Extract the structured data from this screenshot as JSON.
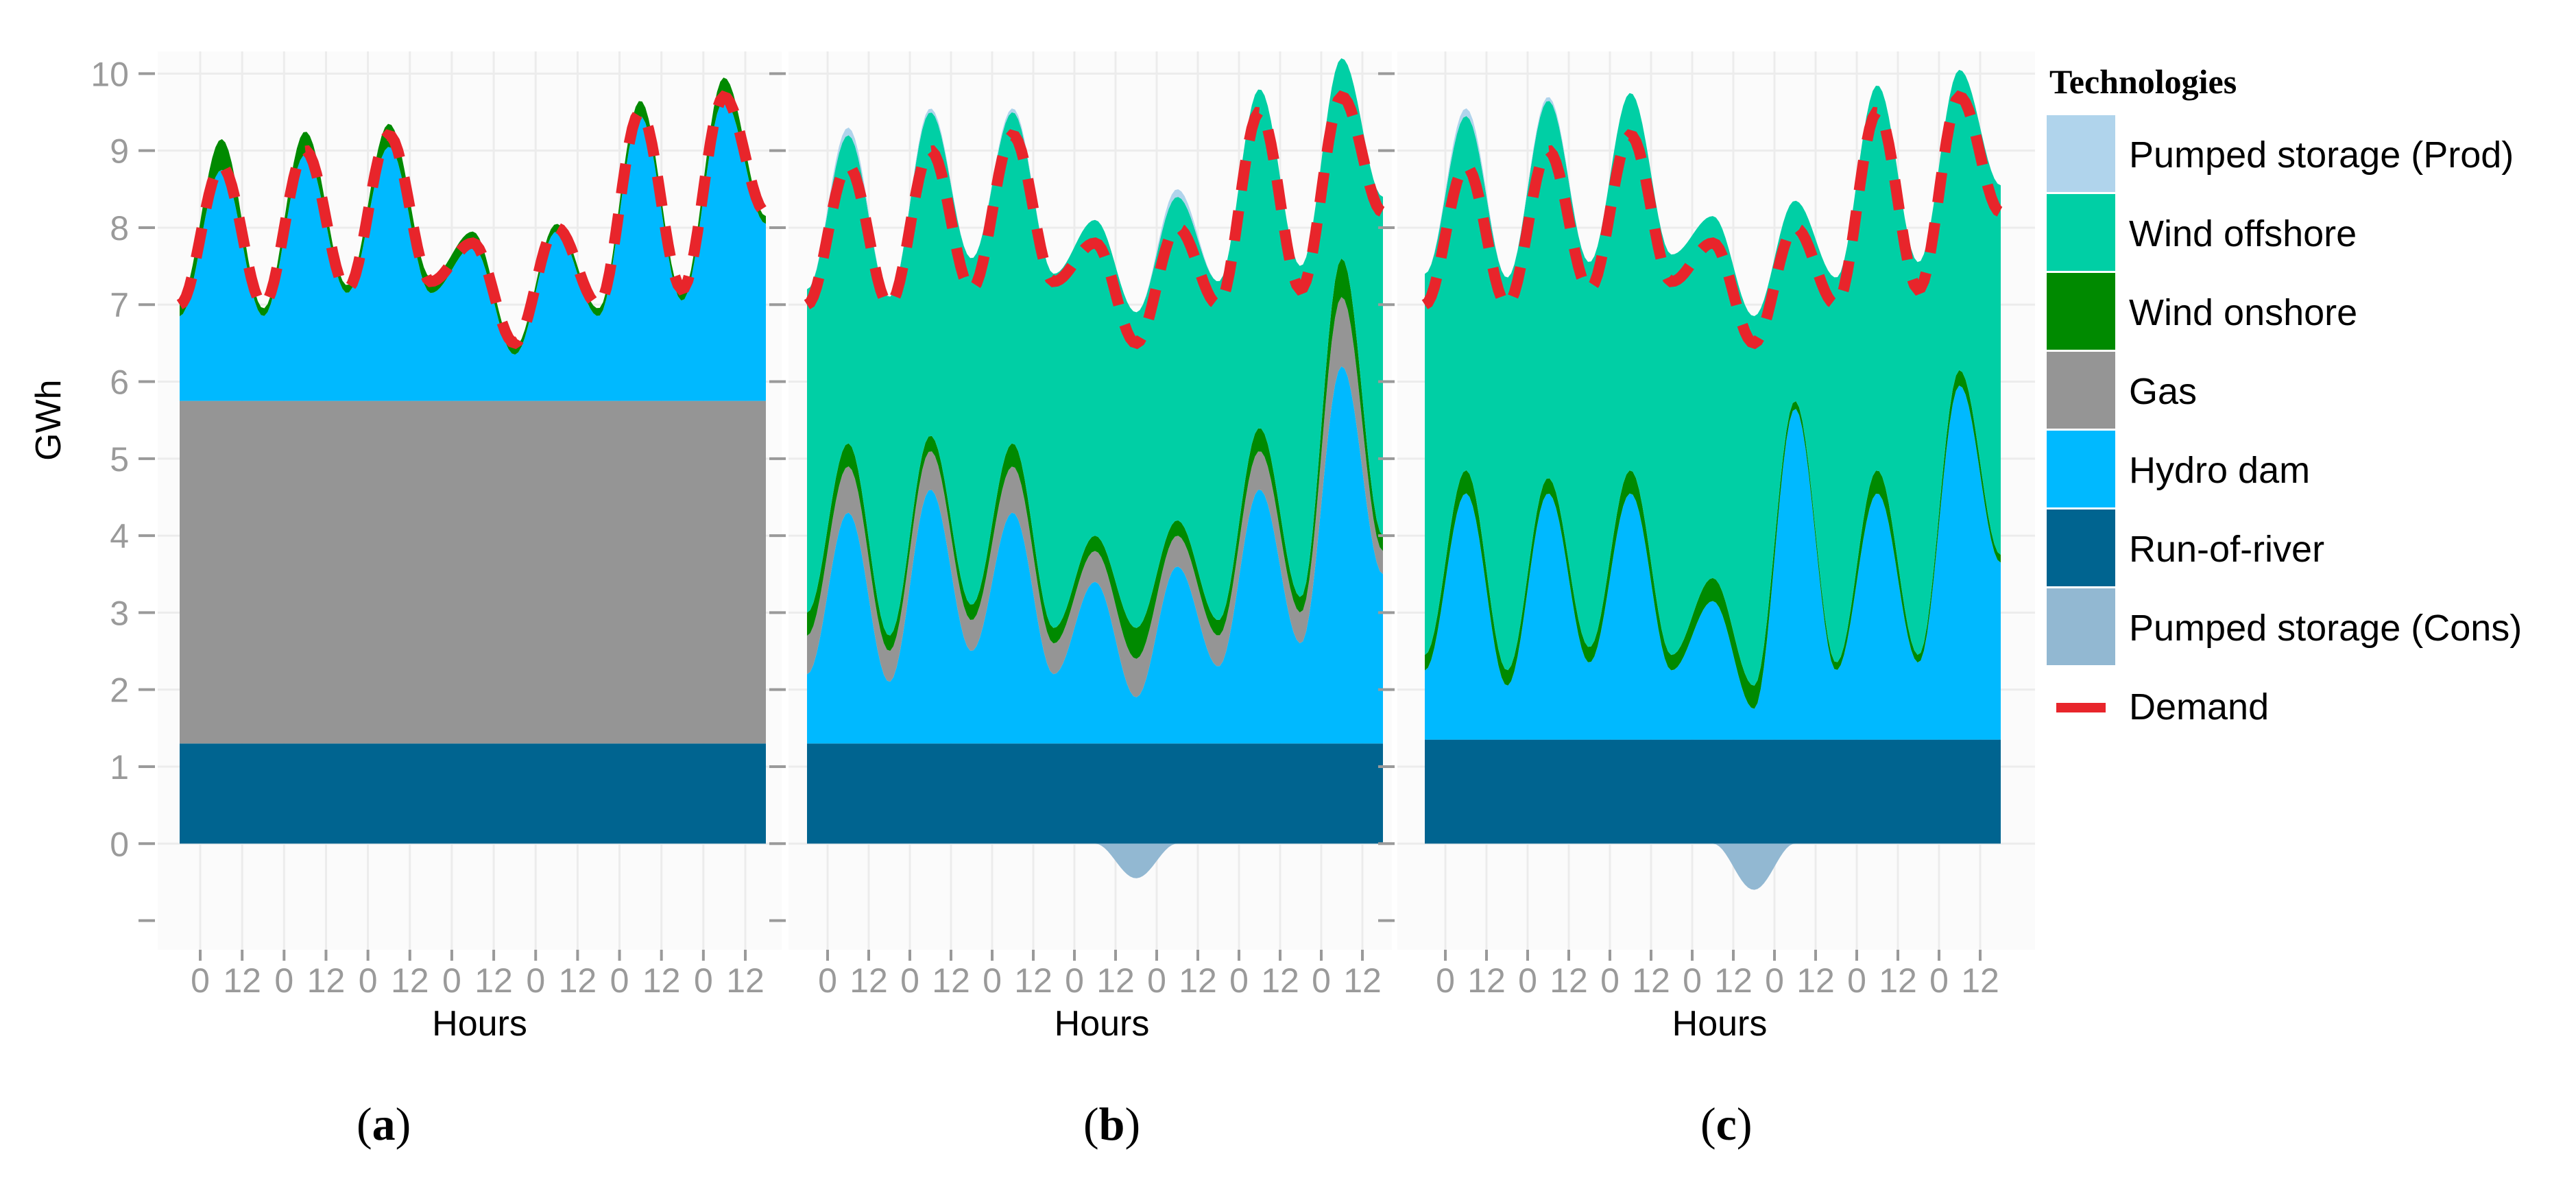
{
  "colors": {
    "pumped_prod": "#b0d4ec",
    "wind_offshore": "#00cfa5",
    "wind_onshore": "#008a00",
    "gas": "#959595",
    "hydro_dam": "#00b9ff",
    "run_of_river": "#006490",
    "pumped_cons": "#92b8d2",
    "demand": "#e8252b",
    "axis_text": "#9a9a9a",
    "grid": "#ececec"
  },
  "legend": {
    "title": "Technologies",
    "items": [
      {
        "key": "pumped_prod",
        "label": "Pumped storage (Prod)"
      },
      {
        "key": "wind_offshore",
        "label": "Wind offshore"
      },
      {
        "key": "wind_onshore",
        "label": "Wind onshore"
      },
      {
        "key": "gas",
        "label": "Gas"
      },
      {
        "key": "hydro_dam",
        "label": "Hydro dam"
      },
      {
        "key": "run_of_river",
        "label": "Run-of-river"
      },
      {
        "key": "pumped_cons",
        "label": "Pumped storage (Cons)"
      }
    ],
    "demand_label": "Demand"
  },
  "panel_labels": [
    "a",
    "b",
    "c"
  ],
  "chart_data": [
    {
      "panel": "a",
      "type": "area",
      "stacked": true,
      "xlabel": "Hours",
      "ylabel": "GWh",
      "ylim": [
        -1.2,
        10.6
      ],
      "yticks": [
        0,
        1,
        2,
        3,
        4,
        5,
        6,
        7,
        8,
        9,
        10
      ],
      "xticks": [
        "0",
        "12",
        "0",
        "12",
        "0",
        "12",
        "0",
        "12",
        "0",
        "12",
        "0",
        "12",
        "0",
        "12"
      ],
      "x_hours": [
        0,
        12,
        24,
        36,
        48,
        60,
        72,
        84,
        96,
        108,
        120,
        132,
        144,
        156,
        167
      ],
      "demand": [
        7.0,
        8.8,
        7.0,
        9.0,
        7.2,
        9.2,
        7.3,
        7.8,
        6.5,
        8.0,
        7.0,
        9.5,
        7.2,
        9.7,
        8.2
      ],
      "series": [
        {
          "name": "Run-of-river",
          "key": "run_of_river",
          "values": [
            1.3,
            1.3,
            1.3,
            1.3,
            1.3,
            1.3,
            1.3,
            1.3,
            1.3,
            1.3,
            1.3,
            1.3,
            1.3,
            1.3,
            1.3
          ]
        },
        {
          "name": "Gas",
          "key": "gas",
          "values": [
            4.45,
            4.45,
            4.45,
            4.45,
            4.45,
            4.45,
            4.45,
            4.45,
            4.45,
            4.45,
            4.45,
            4.45,
            4.45,
            4.45,
            4.45
          ]
        },
        {
          "name": "Hydro dam",
          "key": "hydro_dam",
          "values": [
            1.1,
            3.0,
            1.1,
            3.2,
            1.4,
            3.3,
            1.4,
            2.0,
            0.6,
            2.2,
            1.1,
            3.7,
            1.3,
            3.9,
            2.3
          ]
        },
        {
          "name": "Wind onshore",
          "key": "wind_onshore",
          "values": [
            0.2,
            0.4,
            0.1,
            0.3,
            0.1,
            0.3,
            0.2,
            0.2,
            0.1,
            0.1,
            0.1,
            0.2,
            0.1,
            0.3,
            0.1
          ]
        }
      ]
    },
    {
      "panel": "b",
      "type": "area",
      "stacked": true,
      "xlabel": "Hours",
      "ylabel": "",
      "ylim": [
        -1.2,
        10.6
      ],
      "yticks": [
        0,
        1,
        2,
        3,
        4,
        5,
        6,
        7,
        8,
        9,
        10
      ],
      "xticks": [
        "0",
        "12",
        "0",
        "12",
        "0",
        "12",
        "0",
        "12",
        "0",
        "12",
        "0",
        "12",
        "0",
        "12"
      ],
      "x_hours": [
        0,
        12,
        24,
        36,
        48,
        60,
        72,
        84,
        96,
        108,
        120,
        132,
        144,
        156,
        167
      ],
      "demand": [
        7.0,
        8.8,
        7.0,
        9.0,
        7.2,
        9.2,
        7.3,
        7.8,
        6.5,
        8.0,
        7.0,
        9.5,
        7.2,
        9.7,
        8.2
      ],
      "series": [
        {
          "name": "Pumped storage (Cons)",
          "key": "pumped_cons",
          "values": [
            0,
            0,
            0,
            0,
            0,
            0,
            0,
            0,
            -0.45,
            0,
            0,
            0,
            0,
            0,
            0
          ]
        },
        {
          "name": "Run-of-river",
          "key": "run_of_river",
          "values": [
            1.3,
            1.3,
            1.3,
            1.3,
            1.3,
            1.3,
            1.3,
            1.3,
            1.3,
            1.3,
            1.3,
            1.3,
            1.3,
            1.3,
            1.3
          ]
        },
        {
          "name": "Hydro dam",
          "key": "hydro_dam",
          "values": [
            0.9,
            3.0,
            0.8,
            3.3,
            1.2,
            3.0,
            0.9,
            2.1,
            0.6,
            2.3,
            1.0,
            3.3,
            1.3,
            4.9,
            2.2
          ]
        },
        {
          "name": "Gas",
          "key": "gas",
          "values": [
            0.5,
            0.6,
            0.4,
            0.5,
            0.4,
            0.6,
            0.4,
            0.4,
            0.5,
            0.4,
            0.4,
            0.5,
            0.4,
            0.9,
            0.3
          ]
        },
        {
          "name": "Wind onshore",
          "key": "wind_onshore",
          "values": [
            0.3,
            0.3,
            0.2,
            0.2,
            0.2,
            0.3,
            0.2,
            0.2,
            0.4,
            0.2,
            0.2,
            0.3,
            0.2,
            0.5,
            0.2
          ]
        },
        {
          "name": "Wind offshore",
          "key": "wind_offshore",
          "values": [
            4.2,
            4.0,
            4.4,
            4.2,
            4.5,
            4.3,
            4.6,
            4.1,
            4.1,
            4.2,
            4.4,
            4.4,
            4.3,
            2.6,
            4.4
          ]
        },
        {
          "name": "Pumped storage (Prod)",
          "key": "pumped_prod",
          "values": [
            0,
            0.1,
            0,
            0.05,
            0,
            0.05,
            0,
            0,
            0,
            0.1,
            0,
            0,
            0,
            0,
            0
          ]
        }
      ]
    },
    {
      "panel": "c",
      "type": "area",
      "stacked": true,
      "xlabel": "Hours",
      "ylabel": "",
      "ylim": [
        -1.2,
        10.6
      ],
      "yticks": [
        0,
        1,
        2,
        3,
        4,
        5,
        6,
        7,
        8,
        9,
        10
      ],
      "xticks": [
        "0",
        "12",
        "0",
        "12",
        "0",
        "12",
        "0",
        "12",
        "0",
        "12",
        "0",
        "12",
        "0",
        "12"
      ],
      "x_hours": [
        0,
        12,
        24,
        36,
        48,
        60,
        72,
        84,
        96,
        108,
        120,
        132,
        144,
        156,
        167
      ],
      "demand": [
        7.0,
        8.8,
        7.0,
        9.0,
        7.2,
        9.2,
        7.3,
        7.8,
        6.5,
        8.0,
        7.0,
        9.5,
        7.2,
        9.7,
        8.2
      ],
      "series": [
        {
          "name": "Pumped storage (Cons)",
          "key": "pumped_cons",
          "values": [
            0,
            0,
            0,
            0,
            0,
            0,
            0,
            0,
            -0.6,
            0,
            0,
            0,
            0,
            0,
            0
          ]
        },
        {
          "name": "Run-of-river",
          "key": "run_of_river",
          "values": [
            1.35,
            1.35,
            1.35,
            1.35,
            1.35,
            1.35,
            1.35,
            1.35,
            1.35,
            1.35,
            1.35,
            1.35,
            1.35,
            1.35,
            1.35
          ]
        },
        {
          "name": "Hydro dam",
          "key": "hydro_dam",
          "values": [
            0.9,
            3.2,
            0.7,
            3.2,
            1.0,
            3.2,
            0.9,
            1.8,
            0.4,
            4.3,
            0.9,
            3.2,
            1.0,
            4.6,
            2.3
          ]
        },
        {
          "name": "Wind onshore",
          "key": "wind_onshore",
          "values": [
            0.2,
            0.3,
            0.2,
            0.2,
            0.2,
            0.3,
            0.2,
            0.3,
            0.3,
            0.1,
            0.1,
            0.3,
            0.1,
            0.2,
            0.1
          ]
        },
        {
          "name": "Wind offshore",
          "key": "wind_offshore",
          "values": [
            4.95,
            4.6,
            5.1,
            4.9,
            5.0,
            4.9,
            5.2,
            4.7,
            4.8,
            2.6,
            5.0,
            5.0,
            5.1,
            3.9,
            4.8
          ]
        },
        {
          "name": "Pumped storage (Prod)",
          "key": "pumped_prod",
          "values": [
            0,
            0.1,
            0,
            0.05,
            0,
            0,
            0,
            0,
            0,
            0,
            0,
            0,
            0,
            0,
            0
          ]
        }
      ]
    }
  ]
}
